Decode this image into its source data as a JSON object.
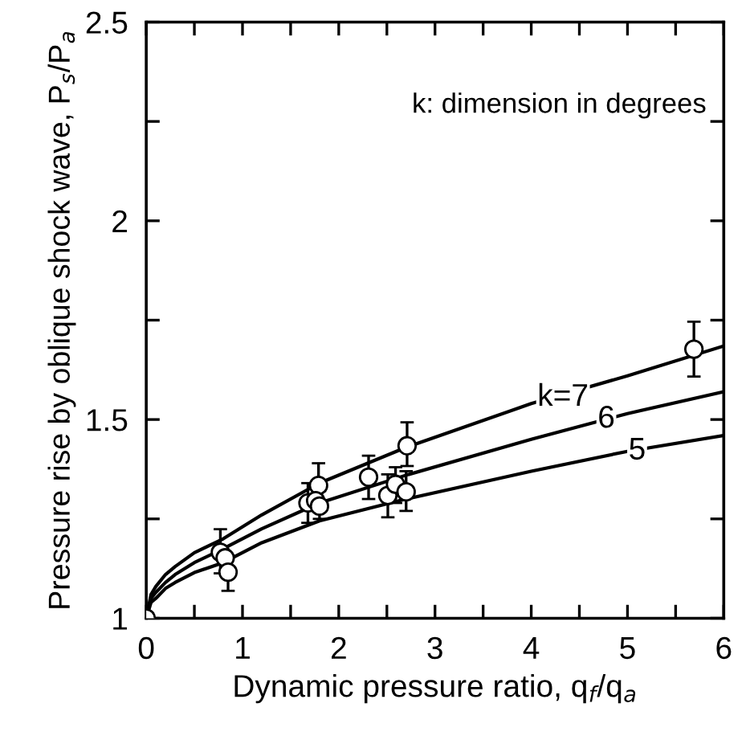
{
  "chart_data": {
    "type": "line",
    "xlabel": "Dynamic pressure ratio, q$_{f}$/q$_{a}$",
    "ylabel": "Pressure rise by oblique shock wave, P$_{s}$/P$_{a}$",
    "xlim": [
      0,
      6
    ],
    "ylim": [
      1,
      2.5
    ],
    "xticks": [
      0,
      {
        "value": 0.5,
        "label": null
      },
      1,
      {
        "value": 1.5,
        "label": null
      },
      2,
      {
        "value": 2.5,
        "label": null
      },
      3,
      {
        "value": 3.5,
        "label": null
      },
      4,
      {
        "value": 4.5,
        "label": null
      },
      5,
      {
        "value": 5.5,
        "label": null
      },
      6
    ],
    "yticks": [
      1,
      {
        "value": 1.25,
        "label": null
      },
      1.5,
      {
        "value": 1.75,
        "label": null
      },
      2,
      {
        "value": 2.25,
        "label": null
      },
      2.5
    ],
    "grid": false,
    "legend": false,
    "annotations": [
      "k: dimension in degrees",
      {
        "text": "k=7",
        "x": 4.33,
        "y": 1.555
      },
      {
        "text": "6",
        "x": 4.78,
        "y": 1.5
      },
      {
        "text": "5",
        "x": 5.1,
        "y": 1.42
      }
    ],
    "series": [
      {
        "color": "#000000",
        "marker": "none",
        "x": [
          0,
          0.05,
          0.1,
          0.2,
          0.3,
          0.5,
          0.8,
          1.2,
          1.8,
          2.7,
          4,
          5,
          6
        ],
        "values": [
          1.0,
          1.06,
          1.08,
          1.11,
          1.13,
          1.165,
          1.2,
          1.26,
          1.34,
          1.43,
          1.54,
          1.61,
          1.685
        ]
      },
      {
        "color": "#000000",
        "marker": "none",
        "x": [
          0,
          0.05,
          0.1,
          0.2,
          0.3,
          0.5,
          0.8,
          1.2,
          1.8,
          2.7,
          4,
          5,
          6
        ],
        "values": [
          1.0,
          1.05,
          1.065,
          1.09,
          1.11,
          1.14,
          1.175,
          1.225,
          1.29,
          1.36,
          1.45,
          1.515,
          1.57
        ]
      },
      {
        "color": "#000000",
        "marker": "none",
        "x": [
          0,
          0.05,
          0.1,
          0.2,
          0.3,
          0.5,
          0.8,
          1.2,
          1.8,
          2.7,
          4,
          5,
          6
        ],
        "values": [
          1.0,
          1.04,
          1.05,
          1.075,
          1.09,
          1.115,
          1.14,
          1.19,
          1.245,
          1.3,
          1.37,
          1.42,
          1.46
        ]
      },
      {
        "type": "scatter",
        "color": "#000000",
        "marker": "circle",
        "x": [
          0,
          0.77,
          0.82,
          0.85,
          1.68,
          1.79,
          1.76,
          1.8,
          2.31,
          2.51,
          2.59,
          2.71,
          2.7,
          5.69
        ],
        "values": [
          1.0,
          1.166,
          1.152,
          1.116,
          1.29,
          1.334,
          1.296,
          1.282,
          1.355,
          1.309,
          1.337,
          1.434,
          1.318,
          1.677
        ],
        "errors": [
          null,
          [
            1.113,
            1.224
          ],
          null,
          [
            1.069,
            1.157
          ],
          [
            1.24,
            1.34
          ],
          [
            1.276,
            1.39
          ],
          null,
          [
            1.25,
            1.32
          ],
          [
            1.3,
            1.409
          ],
          [
            1.254,
            1.362
          ],
          [
            1.29,
            1.38
          ],
          [
            1.383,
            1.493
          ],
          [
            1.27,
            1.37
          ],
          [
            1.608,
            1.746
          ]
        ]
      }
    ]
  }
}
